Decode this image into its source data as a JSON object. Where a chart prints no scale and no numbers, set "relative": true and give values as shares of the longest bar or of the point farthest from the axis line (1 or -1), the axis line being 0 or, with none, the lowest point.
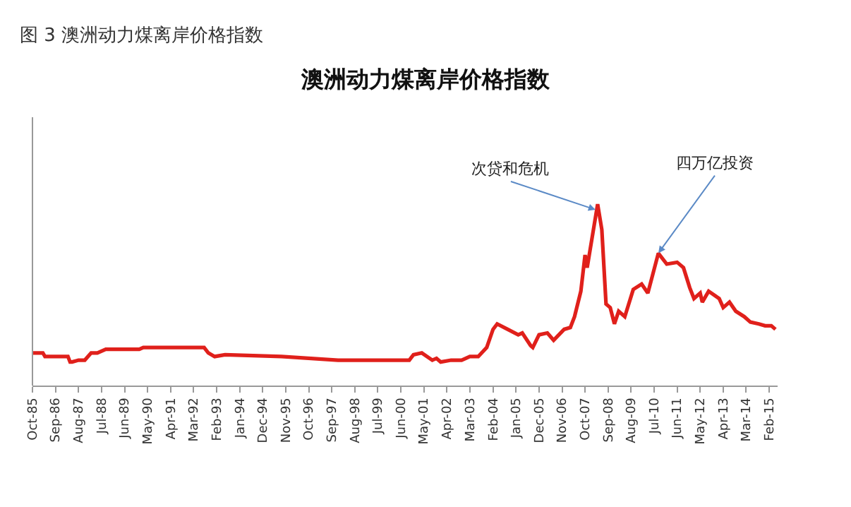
{
  "chart_data": {
    "type": "line",
    "title": "澳洲动力煤离岸价格指数",
    "relative": true,
    "legend": false,
    "marker": "none",
    "line_style": "solid",
    "x": [
      "1985-10",
      "1986-03",
      "1986-04",
      "1987-03",
      "1987-04",
      "1987-05",
      "1987-08",
      "1987-11",
      "1988-02",
      "1988-05",
      "1988-09",
      "1990-01",
      "1990-03",
      "1992-08",
      "1992-10",
      "1993-01",
      "1993-06",
      "1995-09",
      "1997-12",
      "2000-03",
      "2000-10",
      "2000-12",
      "2001-04",
      "2001-09",
      "2001-11",
      "2002-01",
      "2002-06",
      "2002-11",
      "2003-03",
      "2003-07",
      "2003-11",
      "2004-02",
      "2004-04",
      "2004-09",
      "2005-02",
      "2005-04",
      "2005-08",
      "2005-09",
      "2005-12",
      "2006-04",
      "2006-07",
      "2006-12",
      "2007-03",
      "2007-05",
      "2007-08",
      "2007-10",
      "2007-11",
      "2007-12",
      "2008-04",
      "2008-06",
      "2008-08",
      "2008-10",
      "2008-12",
      "2009-02",
      "2009-05",
      "2009-09",
      "2010-01",
      "2010-04",
      "2010-09",
      "2011-01",
      "2011-06",
      "2011-09",
      "2011-12",
      "2012-02",
      "2012-05",
      "2012-06",
      "2012-09",
      "2013-02",
      "2013-04",
      "2013-07",
      "2013-10",
      "2014-02",
      "2014-05",
      "2014-09",
      "2014-12",
      "2015-03",
      "2015-05"
    ],
    "series": [
      {
        "color": "#e0201b",
        "values": [
          0.18,
          0.18,
          0.16,
          0.16,
          0.13,
          0.13,
          0.14,
          0.14,
          0.18,
          0.18,
          0.2,
          0.2,
          0.21,
          0.21,
          0.18,
          0.16,
          0.17,
          0.16,
          0.14,
          0.14,
          0.14,
          0.17,
          0.18,
          0.14,
          0.15,
          0.13,
          0.14,
          0.14,
          0.16,
          0.16,
          0.21,
          0.31,
          0.34,
          0.31,
          0.28,
          0.29,
          0.22,
          0.21,
          0.28,
          0.29,
          0.25,
          0.31,
          0.32,
          0.38,
          0.52,
          0.72,
          0.65,
          0.72,
          1,
          0.86,
          0.45,
          0.43,
          0.34,
          0.41,
          0.38,
          0.53,
          0.56,
          0.51,
          0.73,
          0.67,
          0.68,
          0.65,
          0.54,
          0.48,
          0.51,
          0.46,
          0.52,
          0.48,
          0.43,
          0.46,
          0.41,
          0.38,
          0.35,
          0.34,
          0.33,
          0.33,
          0.31
        ]
      }
    ],
    "xlim": [
      "1985-10",
      "2015-06"
    ],
    "xticks": [
      {
        "value": "1985-10",
        "label": "Oct-85"
      },
      {
        "value": "1986-09",
        "label": "Sep-86"
      },
      {
        "value": "1987-08",
        "label": "Aug-87"
      },
      {
        "value": "1988-07",
        "label": "Jul-88"
      },
      {
        "value": "1989-06",
        "label": "Jun-89"
      },
      {
        "value": "1990-05",
        "label": "May-90"
      },
      {
        "value": "1991-04",
        "label": "Apr-91"
      },
      {
        "value": "1992-03",
        "label": "Mar-92"
      },
      {
        "value": "1993-02",
        "label": "Feb-93"
      },
      {
        "value": "1994-01",
        "label": "Jan-94"
      },
      {
        "value": "1994-12",
        "label": "Dec-94"
      },
      {
        "value": "1995-11",
        "label": "Nov-95"
      },
      {
        "value": "1996-10",
        "label": "Oct-96"
      },
      {
        "value": "1997-09",
        "label": "Sep-97"
      },
      {
        "value": "1998-08",
        "label": "Aug-98"
      },
      {
        "value": "1999-07",
        "label": "Jul-99"
      },
      {
        "value": "2000-06",
        "label": "Jun-00"
      },
      {
        "value": "2001-05",
        "label": "May-01"
      },
      {
        "value": "2002-04",
        "label": "Apr-02"
      },
      {
        "value": "2003-03",
        "label": "Mar-03"
      },
      {
        "value": "2004-02",
        "label": "Feb-04"
      },
      {
        "value": "2005-01",
        "label": "Jan-05"
      },
      {
        "value": "2005-12",
        "label": "Dec-05"
      },
      {
        "value": "2006-11",
        "label": "Nov-06"
      },
      {
        "value": "2007-10",
        "label": "Oct-07"
      },
      {
        "value": "2008-09",
        "label": "Sep-08"
      },
      {
        "value": "2009-08",
        "label": "Aug-09"
      },
      {
        "value": "2010-07",
        "label": "Jul-10"
      },
      {
        "value": "2011-06",
        "label": "Jun-11"
      },
      {
        "value": "2012-05",
        "label": "May-12"
      },
      {
        "value": "2013-04",
        "label": "Apr-13"
      },
      {
        "value": "2014-03",
        "label": "Mar-14"
      },
      {
        "value": "2015-02",
        "label": "Feb-15"
      }
    ],
    "annotations": [
      "图 3 澳洲动力煤离岸价格指数",
      {
        "text": "次贷和危机",
        "x": "2008-03",
        "y": 0.97
      },
      {
        "text": "四万亿投资",
        "x": "2010-09",
        "y": 0.73
      }
    ]
  }
}
